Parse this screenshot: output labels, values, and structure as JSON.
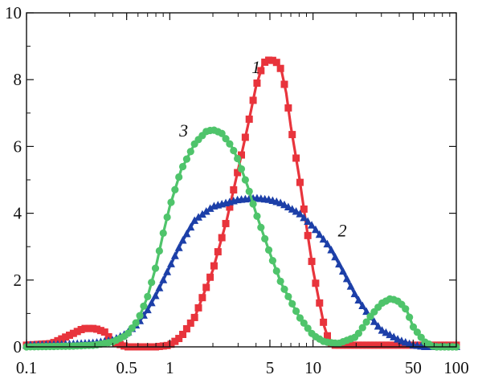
{
  "chart_data": {
    "type": "line",
    "title": "",
    "xlabel": "",
    "ylabel": "",
    "xscale": "log",
    "xlim": [
      0.1,
      100
    ],
    "ylim": [
      0,
      10
    ],
    "grid": false,
    "legend": "none",
    "x_ticks": [
      0.1,
      0.5,
      1,
      5,
      10,
      50,
      100
    ],
    "x_tick_labels": [
      "0.1",
      "0.5",
      "1",
      "5",
      "10",
      "50",
      "100"
    ],
    "y_ticks": [
      0,
      2,
      4,
      6,
      8,
      10
    ],
    "y_tick_labels": [
      "0",
      "2",
      "4",
      "6",
      "8",
      "10"
    ],
    "series": [
      {
        "label": "1",
        "color": "#e8343c",
        "marker": "square",
        "label_at": [
          4.0,
          8.2
        ],
        "points": [
          [
            0.1,
            0.05
          ],
          [
            0.15,
            0.1
          ],
          [
            0.2,
            0.35
          ],
          [
            0.25,
            0.55
          ],
          [
            0.3,
            0.55
          ],
          [
            0.35,
            0.45
          ],
          [
            0.4,
            0.15
          ],
          [
            0.5,
            0.0
          ],
          [
            0.6,
            0.0
          ],
          [
            0.8,
            0.0
          ],
          [
            1.0,
            0.05
          ],
          [
            1.2,
            0.3
          ],
          [
            1.5,
            0.9
          ],
          [
            2.0,
            2.3
          ],
          [
            2.5,
            3.8
          ],
          [
            3.0,
            5.3
          ],
          [
            3.5,
            6.6
          ],
          [
            4.0,
            7.8
          ],
          [
            4.5,
            8.5
          ],
          [
            5.0,
            8.6
          ],
          [
            5.5,
            8.55
          ],
          [
            6.0,
            8.3
          ],
          [
            6.5,
            7.6
          ],
          [
            7.0,
            6.6
          ],
          [
            8.0,
            5.1
          ],
          [
            9.0,
            3.6
          ],
          [
            10.0,
            2.3
          ],
          [
            11.0,
            1.4
          ],
          [
            12.0,
            0.6
          ],
          [
            13.0,
            0.15
          ],
          [
            14.0,
            0.05
          ],
          [
            20.0,
            0.05
          ],
          [
            30.0,
            0.05
          ],
          [
            50.0,
            0.05
          ],
          [
            70.0,
            0.05
          ],
          [
            100.0,
            0.05
          ]
        ]
      },
      {
        "label": "2",
        "color": "#1c3fa8",
        "marker": "triangle",
        "label_at": [
          16.0,
          3.3
        ],
        "points": [
          [
            0.1,
            0.05
          ],
          [
            0.2,
            0.08
          ],
          [
            0.3,
            0.12
          ],
          [
            0.4,
            0.2
          ],
          [
            0.5,
            0.4
          ],
          [
            0.6,
            0.7
          ],
          [
            0.7,
            1.1
          ],
          [
            0.8,
            1.55
          ],
          [
            1.0,
            2.4
          ],
          [
            1.2,
            3.1
          ],
          [
            1.5,
            3.8
          ],
          [
            2.0,
            4.2
          ],
          [
            3.0,
            4.4
          ],
          [
            4.0,
            4.45
          ],
          [
            5.0,
            4.4
          ],
          [
            6.0,
            4.3
          ],
          [
            8.0,
            4.0
          ],
          [
            10.0,
            3.6
          ],
          [
            13.0,
            3.0
          ],
          [
            16.0,
            2.3
          ],
          [
            20.0,
            1.5
          ],
          [
            25.0,
            0.9
          ],
          [
            30.0,
            0.5
          ],
          [
            40.0,
            0.2
          ],
          [
            50.0,
            0.05
          ],
          [
            60.0,
            0.0
          ],
          [
            80.0,
            0.0
          ],
          [
            100.0,
            0.0
          ]
        ]
      },
      {
        "label": "3",
        "color": "#4fc46b",
        "marker": "circle",
        "label_at": [
          1.25,
          6.3
        ],
        "points": [
          [
            0.1,
            0.0
          ],
          [
            0.2,
            0.02
          ],
          [
            0.3,
            0.05
          ],
          [
            0.4,
            0.15
          ],
          [
            0.5,
            0.35
          ],
          [
            0.6,
            0.8
          ],
          [
            0.7,
            1.5
          ],
          [
            0.8,
            2.4
          ],
          [
            0.9,
            3.4
          ],
          [
            1.0,
            4.2
          ],
          [
            1.2,
            5.3
          ],
          [
            1.5,
            6.1
          ],
          [
            1.8,
            6.45
          ],
          [
            2.0,
            6.5
          ],
          [
            2.3,
            6.4
          ],
          [
            2.7,
            6.0
          ],
          [
            3.0,
            5.6
          ],
          [
            3.5,
            4.8
          ],
          [
            4.0,
            4.0
          ],
          [
            5.0,
            2.8
          ],
          [
            6.0,
            1.9
          ],
          [
            8.0,
            0.9
          ],
          [
            10.0,
            0.35
          ],
          [
            12.0,
            0.15
          ],
          [
            15.0,
            0.1
          ],
          [
            20.0,
            0.3
          ],
          [
            25.0,
            0.9
          ],
          [
            30.0,
            1.3
          ],
          [
            35.0,
            1.45
          ],
          [
            40.0,
            1.35
          ],
          [
            45.0,
            1.1
          ],
          [
            50.0,
            0.6
          ],
          [
            60.0,
            0.15
          ],
          [
            70.0,
            0.0
          ],
          [
            100.0,
            0.0
          ]
        ]
      }
    ]
  }
}
